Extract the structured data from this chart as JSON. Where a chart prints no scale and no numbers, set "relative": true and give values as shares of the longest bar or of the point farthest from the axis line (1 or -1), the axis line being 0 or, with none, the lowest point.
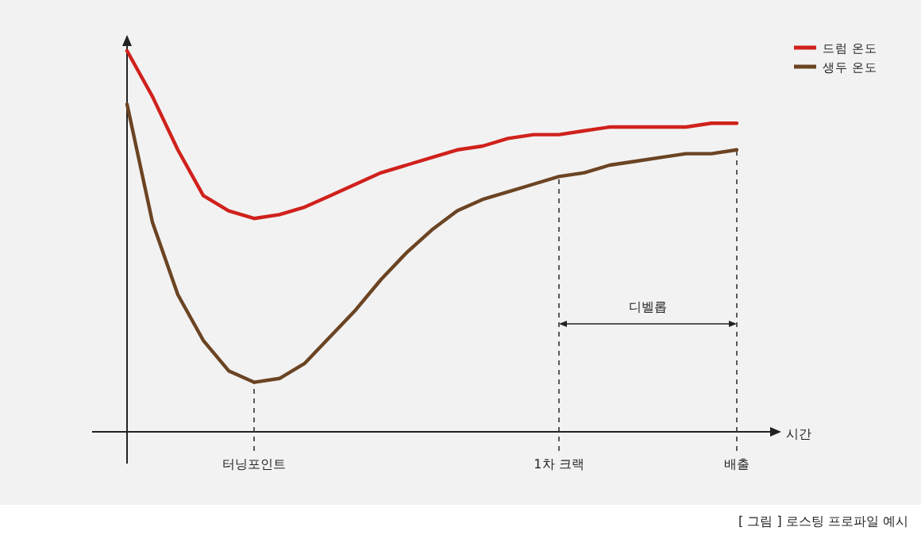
{
  "chart_data": {
    "type": "line",
    "relative": true,
    "xlabel": "시간",
    "legend": "top right",
    "line_style": "solid",
    "categories": [
      null,
      null,
      null,
      null,
      null,
      "터닝포인트",
      null,
      null,
      null,
      null,
      null,
      null,
      null,
      null,
      null,
      null,
      null,
      "1차 크랙",
      null,
      null,
      null,
      null,
      null,
      null,
      "배출"
    ],
    "series": [
      {
        "name": "드럼 온도",
        "color": "#d0211c",
        "values": [
          1.0,
          0.88,
          0.74,
          0.62,
          0.58,
          0.56,
          0.57,
          0.59,
          0.62,
          0.65,
          0.68,
          0.7,
          0.72,
          0.74,
          0.75,
          0.77,
          0.78,
          0.78,
          0.79,
          0.8,
          0.8,
          0.8,
          0.8,
          0.81,
          0.81
        ]
      },
      {
        "name": "생두 온도",
        "color": "#6b4423",
        "values": [
          0.86,
          0.55,
          0.36,
          0.24,
          0.16,
          0.13,
          0.14,
          0.18,
          0.25,
          0.32,
          0.4,
          0.47,
          0.53,
          0.58,
          0.61,
          0.63,
          0.65,
          0.67,
          0.68,
          0.7,
          0.71,
          0.72,
          0.73,
          0.73,
          0.74
        ]
      }
    ],
    "ref_lines": [
      {
        "axis": "x",
        "value": "터닝포인트",
        "line_style": "dashed"
      },
      {
        "axis": "x",
        "value": "1차 크랙",
        "line_style": "dashed"
      },
      {
        "axis": "x",
        "value": "배출",
        "line_style": "dashed"
      }
    ],
    "annotations": [
      "디벨롭",
      "[ 그림 ] 로스팅 프로파일 예시"
    ]
  }
}
